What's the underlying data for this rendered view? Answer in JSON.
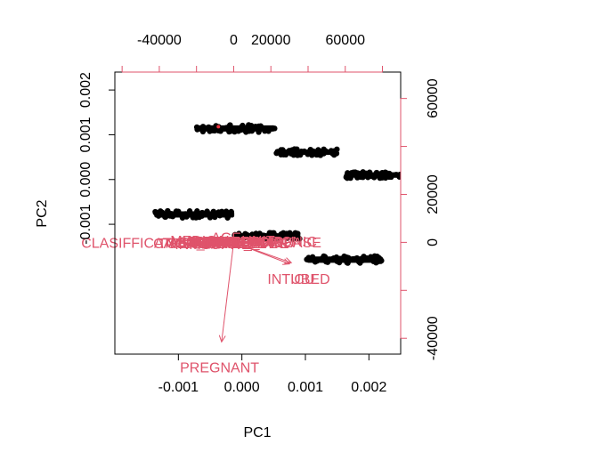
{
  "chart_data": {
    "type": "scatter",
    "subtype": "pca-biplot",
    "xlabel": "PC1",
    "ylabel": "PC2",
    "xlim": [
      -0.002,
      0.0025
    ],
    "ylim": [
      -0.0039,
      0.0024
    ],
    "x_ticks": [
      {
        "value": -0.001,
        "label": "-0.001"
      },
      {
        "value": 0.0,
        "label": "0.000"
      },
      {
        "value": 0.001,
        "label": "0.001"
      },
      {
        "value": 0.002,
        "label": "0.002"
      }
    ],
    "y_ticks": [
      {
        "value": -0.001,
        "label": "-0.001"
      },
      {
        "value": 0.0,
        "label": "0.000"
      },
      {
        "value": 0.001,
        "label": "0.001"
      },
      {
        "value": 0.002,
        "label": "0.002"
      }
    ],
    "secondary_axes": {
      "color": "#df536b",
      "xlim": [
        -63900,
        89800
      ],
      "ylim": [
        -46600,
        71000
      ],
      "top_ticks": [
        {
          "value": -40000,
          "label": "-40000"
        },
        {
          "value": 0,
          "label": "0"
        },
        {
          "value": 20000,
          "label": "20000"
        },
        {
          "value": 60000,
          "label": "60000"
        }
      ],
      "top_minor_ticks": [
        -60000,
        -20000,
        40000,
        80000
      ],
      "right_ticks": [
        {
          "value": -40000,
          "label": "-40000"
        },
        {
          "value": 0,
          "label": "0"
        },
        {
          "value": 20000,
          "label": "20000"
        },
        {
          "value": 60000,
          "label": "60000"
        }
      ],
      "right_minor_ticks": [
        -20000,
        40000
      ]
    },
    "score_clusters": [
      {
        "x_range": [
          -0.00072,
          0.00052
        ],
        "y_center": 0.00114,
        "spread": 7e-05
      },
      {
        "x_range": [
          0.00052,
          0.00152
        ],
        "y_center": 0.00061,
        "spread": 6e-05
      },
      {
        "x_range": [
          0.00162,
          0.0025
        ],
        "y_center": 0.0001,
        "spread": 6e-05
      },
      {
        "x_range": [
          -0.00138,
          -0.00012
        ],
        "y_center": -0.00078,
        "spread": 7e-05
      },
      {
        "x_range": [
          -0.00012,
          0.00092
        ],
        "y_center": -0.00126,
        "spread": 6e-05
      },
      {
        "x_range": [
          0.00102,
          0.00222
        ],
        "y_center": -0.00179,
        "spread": 7e-05
      }
    ],
    "highlight_point": {
      "x": -0.00037,
      "y": 0.00118,
      "color": "#e8313c"
    },
    "points_color": "#000000",
    "arrow_color": "#df536b",
    "loadings": [
      {
        "label": "PREGNANT",
        "x": -6500,
        "y": -41500,
        "label_x": -7600,
        "label_y": -52000
      },
      {
        "label": "INTUBED",
        "x": 30000,
        "y": -9000,
        "label_x": 35000,
        "label_y": -15000
      },
      {
        "label": "ICU",
        "x": 31000,
        "y": -8500,
        "label_x": 37000,
        "label_y": -15000
      },
      {
        "label": "CLASIFFICATION_FINAL",
        "x": -12000,
        "y": 0,
        "label_x": -38000,
        "label_y": 0
      },
      {
        "label": "AGE",
        "x": -4000,
        "y": 2200,
        "label_x": -4000,
        "label_y": 2200
      },
      {
        "label": "USMER",
        "x": -20000,
        "y": 0,
        "label_x": -20000,
        "label_y": 0
      },
      {
        "label": "MEDICAL_UNIT",
        "x": -6000,
        "y": 800,
        "label_x": -6000,
        "label_y": 800
      },
      {
        "label": "SEX",
        "x": -15000,
        "y": -400,
        "label_x": -15000,
        "label_y": -400
      },
      {
        "label": "PATIENT_TYPE",
        "x": 2000,
        "y": -300,
        "label_x": 2000,
        "label_y": -300
      },
      {
        "label": "PNEUMONIA",
        "x": -1000,
        "y": 600,
        "label_x": -1000,
        "label_y": 600
      },
      {
        "label": "DIABETES",
        "x": 10000,
        "y": -300,
        "label_x": 10000,
        "label_y": -300
      },
      {
        "label": "COPD",
        "x": -10000,
        "y": 300,
        "label_x": -10000,
        "label_y": 300
      },
      {
        "label": "ASTHMA",
        "x": -19000,
        "y": 400,
        "label_x": -19000,
        "label_y": 400
      },
      {
        "label": "INMSUPR",
        "x": -14000,
        "y": -600,
        "label_x": -14000,
        "label_y": -600
      },
      {
        "label": "HIPERTENSION",
        "x": 4000,
        "y": 500,
        "label_x": 4000,
        "label_y": 500
      },
      {
        "label": "OTHER_DISEASE",
        "x": 15000,
        "y": 200,
        "label_x": 15000,
        "label_y": 200
      },
      {
        "label": "CARDIOVASCULAR",
        "x": -8000,
        "y": -200,
        "label_x": -8000,
        "label_y": -200
      },
      {
        "label": "OBESITY",
        "x": 0,
        "y": 400,
        "label_x": 0,
        "label_y": 400
      },
      {
        "label": "RENAL_CHRONIC",
        "x": 12000,
        "y": 500,
        "label_x": 12000,
        "label_y": 500
      },
      {
        "label": "TOBACCO",
        "x": -22000,
        "y": -300,
        "label_x": -22000,
        "label_y": -300
      }
    ]
  }
}
